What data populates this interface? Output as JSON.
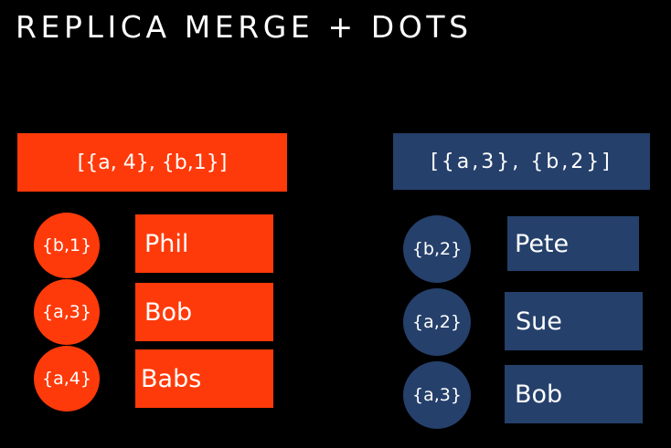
{
  "title": "REPLICA MERGE + DOTS",
  "colors": {
    "background": "#000000",
    "replica_a": "#ff3a0a",
    "replica_b": "#25406b",
    "text": "#ffffff"
  },
  "replica_a": {
    "clock": "[{a, 4}, {b,1}]",
    "entries": [
      {
        "dot": "{b,1}",
        "name": "Phil"
      },
      {
        "dot": "{a,3}",
        "name": "Bob"
      },
      {
        "dot": "{a,4}",
        "name": "Babs"
      }
    ]
  },
  "replica_b": {
    "clock": "[{a,3}, {b,2}]",
    "entries": [
      {
        "dot": "{b,2}",
        "name": "Pete"
      },
      {
        "dot": "{a,2}",
        "name": "Sue"
      },
      {
        "dot": "{a,3}",
        "name": "Bob"
      }
    ]
  }
}
